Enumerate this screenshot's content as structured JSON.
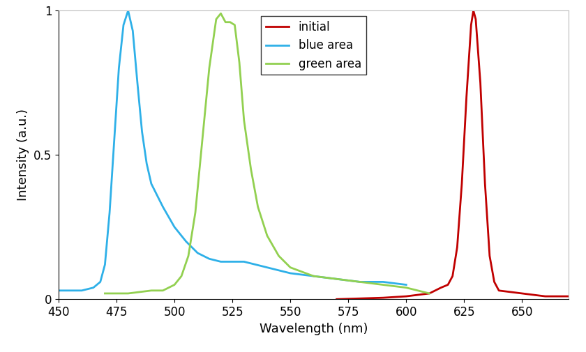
{
  "chart_data": {
    "type": "line",
    "x_label": "Wavelength (nm)",
    "y_label": "Intensity (a.u.)",
    "xlim": [
      450,
      670
    ],
    "xticks": [
      450,
      475,
      500,
      525,
      550,
      575,
      600,
      625,
      650
    ],
    "ylim": [
      0,
      1
    ],
    "yticks": [
      0,
      0.5,
      1
    ],
    "grid": false,
    "legend": "upper center",
    "series": [
      {
        "name": "initial",
        "color": "#c00000",
        "x": [
          570,
          590,
          600,
          610,
          615,
          618,
          620,
          622,
          624,
          626,
          628,
          629,
          630,
          632,
          634,
          636,
          638,
          640,
          650,
          660,
          670
        ],
        "values": [
          0,
          0.005,
          0.01,
          0.02,
          0.04,
          0.05,
          0.08,
          0.18,
          0.4,
          0.7,
          0.95,
          1.0,
          0.97,
          0.75,
          0.4,
          0.15,
          0.06,
          0.03,
          0.02,
          0.01,
          0.01
        ]
      },
      {
        "name": "blue area",
        "color": "#2eb0e8",
        "x": [
          450,
          460,
          465,
          468,
          470,
          472,
          474,
          476,
          478,
          480,
          482,
          484,
          486,
          488,
          490,
          495,
          500,
          505,
          510,
          515,
          520,
          525,
          530,
          540,
          550,
          560,
          570,
          580,
          590,
          600
        ],
        "values": [
          0.03,
          0.03,
          0.04,
          0.06,
          0.12,
          0.3,
          0.55,
          0.8,
          0.95,
          1.0,
          0.93,
          0.75,
          0.58,
          0.47,
          0.4,
          0.32,
          0.25,
          0.2,
          0.16,
          0.14,
          0.13,
          0.13,
          0.13,
          0.11,
          0.09,
          0.08,
          0.07,
          0.06,
          0.06,
          0.05
        ]
      },
      {
        "name": "green area",
        "color": "#92d050",
        "x": [
          470,
          480,
          490,
          495,
          500,
          503,
          506,
          509,
          512,
          515,
          518,
          520,
          522,
          524,
          526,
          528,
          530,
          533,
          536,
          540,
          545,
          550,
          560,
          570,
          580,
          590,
          600,
          610
        ],
        "values": [
          0.02,
          0.02,
          0.03,
          0.03,
          0.05,
          0.08,
          0.15,
          0.3,
          0.55,
          0.8,
          0.97,
          0.99,
          0.96,
          0.96,
          0.95,
          0.82,
          0.62,
          0.45,
          0.32,
          0.22,
          0.15,
          0.11,
          0.08,
          0.07,
          0.06,
          0.05,
          0.04,
          0.02
        ]
      }
    ]
  }
}
